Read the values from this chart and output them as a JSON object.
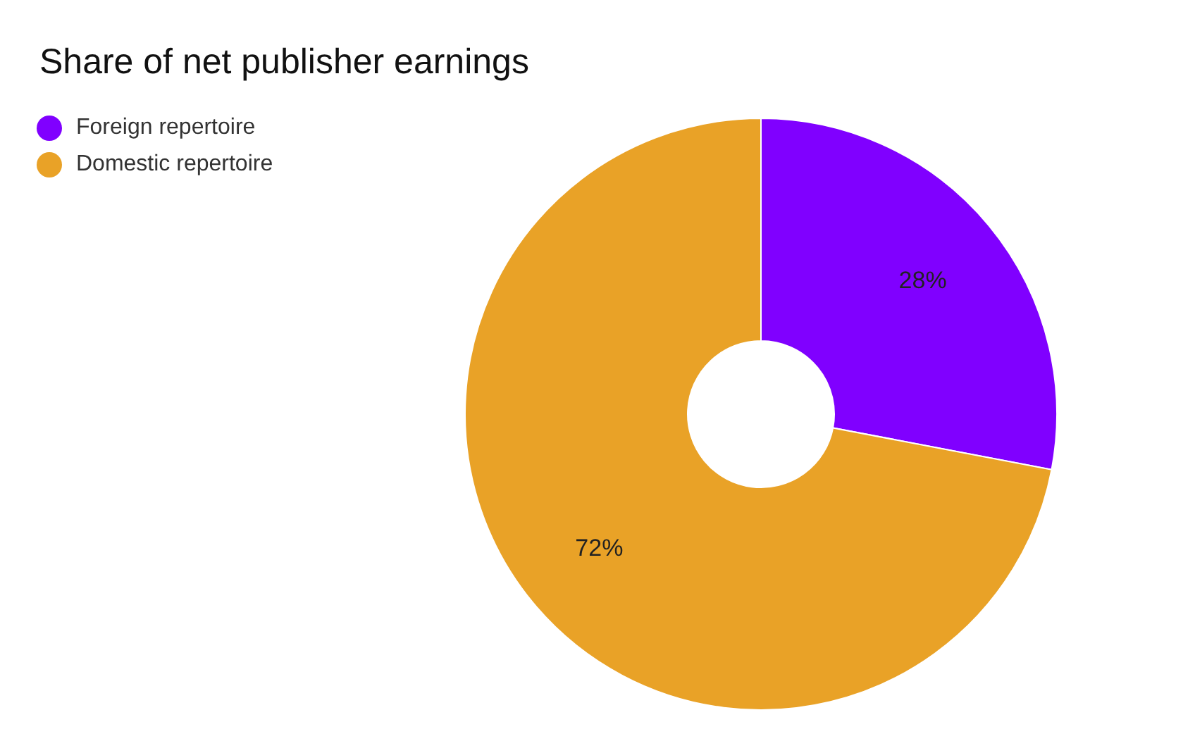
{
  "chart_data": {
    "type": "donut",
    "title": "Share of net publisher earnings",
    "categories": [
      "Foreign repertoire",
      "Domestic repertoire"
    ],
    "values": [
      28,
      72
    ],
    "colors": [
      "#8000ff",
      "#e9a227"
    ],
    "value_labels": [
      "28%",
      "72%"
    ],
    "legend": "top left"
  }
}
